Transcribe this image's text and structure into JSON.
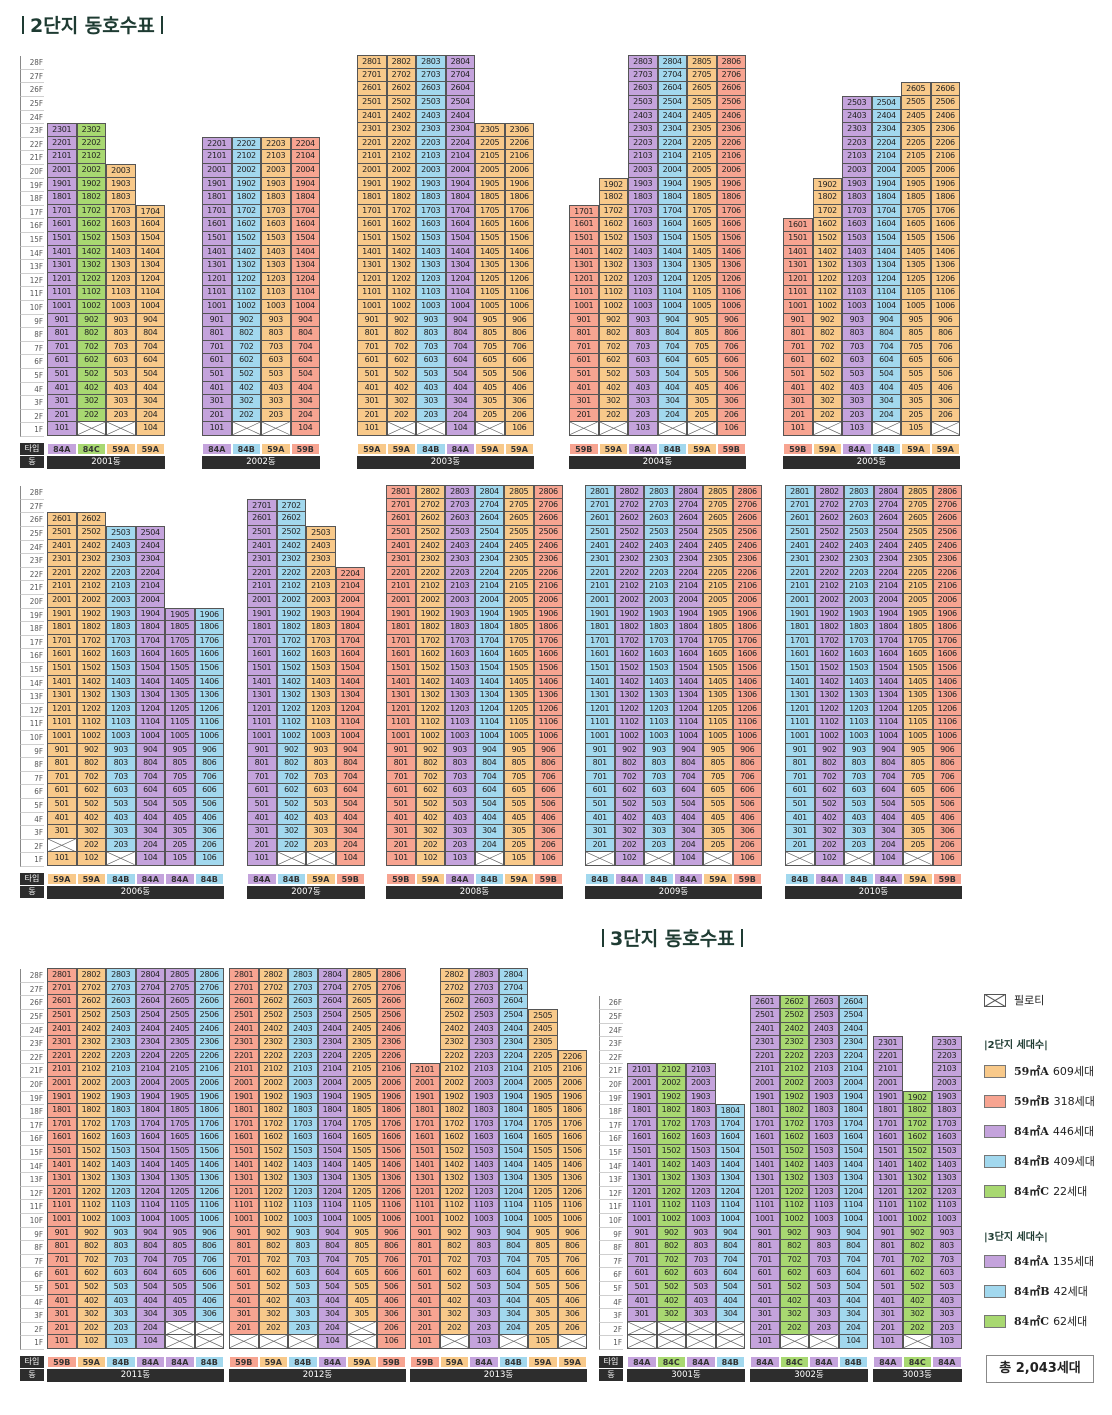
{
  "header": {
    "title2": "2단지 동호수표",
    "title3": "3단지 동호수표"
  },
  "colors": {
    "59A": "#f8c98a",
    "59B": "#f7a491",
    "84A": "#c4a3dc",
    "84B": "#a2d8ee",
    "84C": "#a8d871",
    "pilotis": "#ffffff"
  },
  "labels": {
    "type": "타입",
    "dong": "동"
  },
  "legend": {
    "pilotis": "필로티",
    "g2_title": "2단지 세대수",
    "g2": [
      {
        "type": "59㎡A",
        "count": "609세대",
        "key": "59A"
      },
      {
        "type": "59㎡B",
        "count": "318세대",
        "key": "59B"
      },
      {
        "type": "84㎡A",
        "count": "446세대",
        "key": "84A"
      },
      {
        "type": "84㎡B",
        "count": "409세대",
        "key": "84B"
      },
      {
        "type": "84㎡C",
        "count": "22세대",
        "key": "84C"
      }
    ],
    "g3_title": "3단지 세대수",
    "g3": [
      {
        "type": "84㎡A",
        "count": "135세대",
        "key": "84A"
      },
      {
        "type": "84㎡B",
        "count": "42세대",
        "key": "84B"
      },
      {
        "type": "84㎡C",
        "count": "62세대",
        "key": "84C"
      }
    ],
    "total": "총 2,043세대"
  },
  "buildings": [
    {
      "dong": "2001동",
      "types": [
        "84A",
        "84C",
        "59A",
        "59A"
      ],
      "tops": [
        23,
        23,
        20,
        17
      ],
      "pil": [
        [
          1,
          2,
          3
        ]
      ],
      "pos": {
        "x": 47,
        "row": 1
      }
    },
    {
      "dong": "2002동",
      "types": [
        "84A",
        "84B",
        "59A",
        "59B"
      ],
      "tops": [
        22,
        22,
        22,
        22
      ],
      "pil": [
        [
          1,
          2,
          3
        ]
      ],
      "pos": {
        "x": 202,
        "row": 1
      }
    },
    {
      "dong": "2003동",
      "types": [
        "59A",
        "59A",
        "84B",
        "84A",
        "59A",
        "59A"
      ],
      "tops": [
        28,
        28,
        28,
        28,
        23,
        23
      ],
      "pil": [
        [
          1,
          2,
          3
        ],
        [
          1,
          5
        ]
      ],
      "pos": {
        "x": 357,
        "row": 1
      }
    },
    {
      "dong": "2004동",
      "types": [
        "59B",
        "59A",
        "84A",
        "84B",
        "59A",
        "59B"
      ],
      "tops": [
        17,
        19,
        28,
        28,
        28,
        28
      ],
      "pil": [
        [
          1,
          1,
          2
        ],
        [
          1,
          4,
          5
        ]
      ],
      "pos": {
        "x": 569,
        "row": 1
      }
    },
    {
      "dong": "2005동",
      "types": [
        "59B",
        "59A",
        "84A",
        "84B",
        "59A",
        "59A"
      ],
      "tops": [
        16,
        19,
        25,
        25,
        26,
        26
      ],
      "pil": [
        [
          1,
          2
        ],
        [
          1,
          4,
          6
        ]
      ],
      "pos": {
        "x": 783,
        "row": 1
      }
    },
    {
      "dong": "2006동",
      "types": [
        "59A",
        "59A",
        "84B",
        "84A",
        "84A",
        "84B"
      ],
      "tops": [
        26,
        26,
        25,
        25,
        19,
        19
      ],
      "pil": [
        [
          2,
          1
        ],
        [
          1,
          3
        ]
      ],
      "pos": {
        "x": 47,
        "row": 2
      }
    },
    {
      "dong": "2007동",
      "types": [
        "84A",
        "84B",
        "59A",
        "59B"
      ],
      "tops": [
        27,
        27,
        25,
        22
      ],
      "pil": [
        [
          1,
          2,
          3
        ]
      ],
      "pos": {
        "x": 247,
        "row": 2
      }
    },
    {
      "dong": "2008동",
      "types": [
        "59B",
        "59A",
        "84A",
        "84B",
        "59A",
        "59B"
      ],
      "tops": [
        28,
        28,
        28,
        28,
        28,
        28
      ],
      "pil": [
        [
          1,
          4
        ]
      ],
      "pos": {
        "x": 386,
        "row": 2
      }
    },
    {
      "dong": "2009동",
      "types": [
        "84B",
        "84A",
        "84B",
        "84A",
        "59A",
        "59B"
      ],
      "tops": [
        28,
        28,
        28,
        28,
        28,
        28
      ],
      "pil": [
        [
          1,
          1,
          3,
          5
        ]
      ],
      "pos": {
        "x": 585,
        "row": 2
      }
    },
    {
      "dong": "2010동",
      "types": [
        "84B",
        "84A",
        "84B",
        "84A",
        "59A",
        "59B"
      ],
      "tops": [
        28,
        28,
        28,
        28,
        28,
        28
      ],
      "pil": [
        [
          1,
          1,
          3,
          5
        ]
      ],
      "pos": {
        "x": 785,
        "row": 2
      }
    },
    {
      "dong": "2011동",
      "types": [
        "59B",
        "59A",
        "84B",
        "84A",
        "84A",
        "84B"
      ],
      "tops": [
        28,
        28,
        28,
        28,
        28,
        28
      ],
      "pil": [
        [
          1,
          5,
          6
        ],
        [
          2,
          5,
          6
        ]
      ],
      "pos": {
        "x": 47,
        "row": 3
      }
    },
    {
      "dong": "2012동",
      "types": [
        "59B",
        "59A",
        "84B",
        "84A",
        "59A",
        "59B"
      ],
      "tops": [
        28,
        28,
        28,
        28,
        28,
        28
      ],
      "pil": [
        [
          1,
          1,
          2,
          3,
          5
        ],
        [
          2,
          5
        ]
      ],
      "pos": {
        "x": 229,
        "row": 3
      }
    },
    {
      "dong": "2013동",
      "types": [
        "59B",
        "59A",
        "84A",
        "84B",
        "59A",
        "59A"
      ],
      "tops": [
        21,
        28,
        28,
        28,
        25,
        22
      ],
      "pil": [
        [
          1,
          2,
          4,
          6
        ]
      ],
      "pos": {
        "x": 410,
        "row": 3
      }
    },
    {
      "dong": "3001동",
      "types": [
        "84A",
        "84C",
        "84A",
        "84B"
      ],
      "tops": [
        21,
        21,
        21,
        18
      ],
      "pil": [
        [
          1,
          1,
          2,
          3,
          4
        ],
        [
          2,
          1,
          2,
          3,
          4
        ]
      ],
      "pos": {
        "x": 627,
        "row": 4
      }
    },
    {
      "dong": "3002동",
      "types": [
        "84A",
        "84C",
        "84A",
        "84B"
      ],
      "tops": [
        26,
        26,
        26,
        26
      ],
      "pil": [
        [
          1,
          2,
          3
        ]
      ],
      "pos": {
        "x": 750,
        "row": 4
      }
    },
    {
      "dong": "3003동",
      "types": [
        "84A",
        "84C",
        "84A"
      ],
      "tops": [
        23,
        19,
        23
      ],
      "pil": [
        [
          1,
          2
        ]
      ],
      "pos": {
        "x": 873,
        "row": 4
      }
    }
  ]
}
